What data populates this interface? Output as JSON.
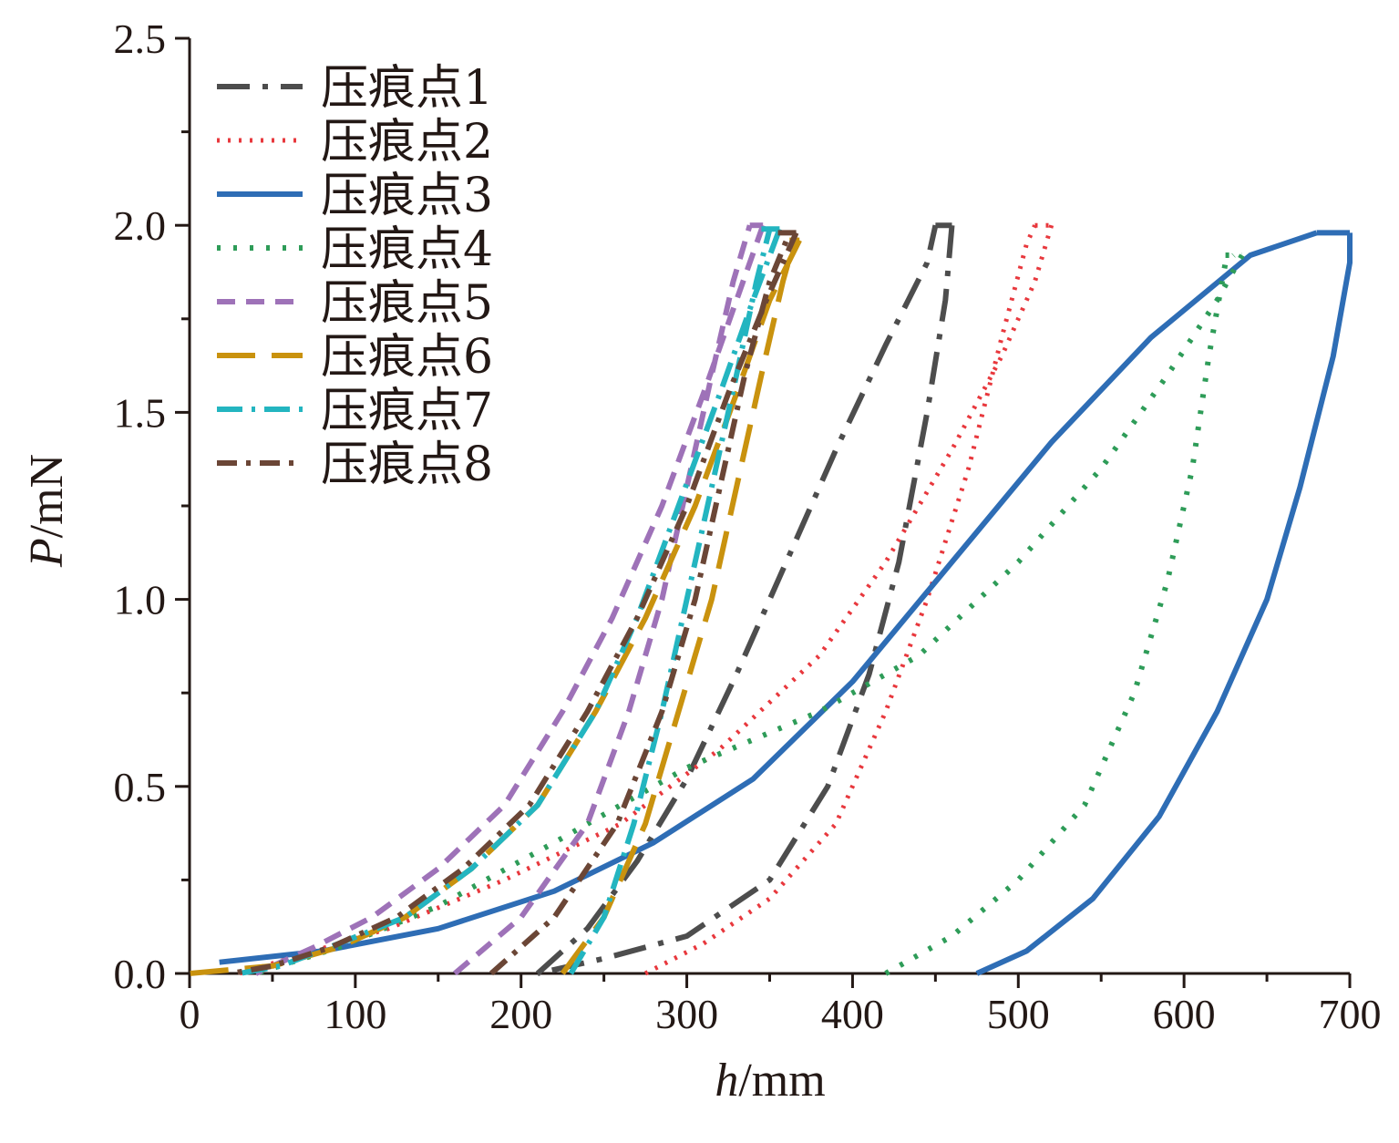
{
  "chart_data": {
    "type": "line",
    "xlabel": {
      "var": "h",
      "unit": "/mm"
    },
    "ylabel": {
      "var": "P",
      "unit": "/mN"
    },
    "xlim": [
      0,
      700
    ],
    "ylim": [
      0,
      2.5
    ],
    "xticks": [
      0,
      100,
      200,
      300,
      400,
      500,
      600,
      700
    ],
    "xtick_labels": [
      "0",
      "100",
      "200",
      "300",
      "400",
      "500",
      "600",
      "700"
    ],
    "yticks": [
      0,
      0.5,
      1.0,
      1.5,
      2.0,
      2.5
    ],
    "ytick_labels": [
      "0.0",
      "0.5",
      "1.0",
      "1.5",
      "2.0",
      "2.5"
    ],
    "grid": false,
    "legend_position": "top-left",
    "series": [
      {
        "name": "压痕点1",
        "color": "#4d4d4d",
        "dash": "36,14,6,14",
        "width": 6,
        "loading": [
          [
            210,
            0
          ],
          [
            240,
            0.12
          ],
          [
            270,
            0.3
          ],
          [
            300,
            0.52
          ],
          [
            330,
            0.8
          ],
          [
            360,
            1.1
          ],
          [
            390,
            1.4
          ],
          [
            420,
            1.68
          ],
          [
            445,
            1.9
          ],
          [
            450,
            2.0
          ]
        ],
        "hold": [
          [
            450,
            2.0
          ],
          [
            460,
            2.0
          ]
        ],
        "unloading": [
          [
            460,
            2.0
          ],
          [
            456,
            1.8
          ],
          [
            445,
            1.5
          ],
          [
            428,
            1.1
          ],
          [
            410,
            0.8
          ],
          [
            385,
            0.5
          ],
          [
            350,
            0.25
          ],
          [
            300,
            0.1
          ],
          [
            250,
            0.04
          ],
          [
            210,
            0
          ]
        ]
      },
      {
        "name": "压痕点2",
        "color": "#e8383d",
        "dash": "3,9",
        "width": 5,
        "loading": [
          [
            275,
            0
          ],
          [
            310,
            0.08
          ],
          [
            350,
            0.2
          ],
          [
            390,
            0.4
          ],
          [
            420,
            0.7
          ],
          [
            445,
            1.0
          ],
          [
            470,
            1.35
          ],
          [
            490,
            1.7
          ],
          [
            505,
            1.95
          ],
          [
            510,
            2.0
          ]
        ],
        "hold": [
          [
            510,
            2.0
          ],
          [
            520,
            2.0
          ]
        ],
        "unloading": [
          [
            520,
            2.0
          ],
          [
            510,
            1.85
          ],
          [
            490,
            1.65
          ],
          [
            460,
            1.4
          ],
          [
            420,
            1.1
          ],
          [
            380,
            0.85
          ],
          [
            320,
            0.6
          ],
          [
            260,
            0.4
          ],
          [
            190,
            0.25
          ],
          [
            120,
            0.12
          ],
          [
            60,
            0.04
          ],
          [
            30,
            0
          ]
        ]
      },
      {
        "name": "压痕点3",
        "color": "#2e6db5",
        "dash": "",
        "width": 6,
        "loading": [
          [
            18,
            0.03
          ],
          [
            80,
            0.06
          ],
          [
            150,
            0.12
          ],
          [
            220,
            0.22
          ],
          [
            280,
            0.35
          ],
          [
            340,
            0.52
          ],
          [
            400,
            0.78
          ],
          [
            460,
            1.1
          ],
          [
            520,
            1.42
          ],
          [
            580,
            1.7
          ],
          [
            640,
            1.92
          ],
          [
            680,
            1.98
          ]
        ],
        "hold": [
          [
            680,
            1.98
          ],
          [
            700,
            1.98
          ]
        ],
        "unloading": [
          [
            700,
            1.98
          ],
          [
            700,
            1.9
          ],
          [
            690,
            1.65
          ],
          [
            670,
            1.3
          ],
          [
            650,
            1.0
          ],
          [
            620,
            0.7
          ],
          [
            585,
            0.42
          ],
          [
            545,
            0.2
          ],
          [
            505,
            0.06
          ],
          [
            475,
            0
          ]
        ]
      },
      {
        "name": "压痕点4",
        "color": "#2e9c58",
        "dash": "4,14",
        "width": 6,
        "loading": [
          [
            420,
            0
          ],
          [
            460,
            0.1
          ],
          [
            500,
            0.25
          ],
          [
            540,
            0.45
          ],
          [
            570,
            0.75
          ],
          [
            590,
            1.05
          ],
          [
            605,
            1.35
          ],
          [
            615,
            1.65
          ],
          [
            625,
            1.9
          ],
          [
            630,
            1.92
          ]
        ],
        "hold": [
          [
            625,
            1.92
          ],
          [
            635,
            1.92
          ]
        ],
        "unloading": [
          [
            635,
            1.92
          ],
          [
            620,
            1.8
          ],
          [
            590,
            1.6
          ],
          [
            550,
            1.35
          ],
          [
            500,
            1.1
          ],
          [
            440,
            0.85
          ],
          [
            380,
            0.7
          ],
          [
            300,
            0.55
          ],
          [
            220,
            0.35
          ],
          [
            150,
            0.18
          ],
          [
            90,
            0.07
          ],
          [
            40,
            0
          ]
        ]
      },
      {
        "name": "压痕点5",
        "color": "#9e72b8",
        "dash": "20,12",
        "width": 6,
        "loading": [
          [
            160,
            0
          ],
          [
            200,
            0.15
          ],
          [
            240,
            0.4
          ],
          [
            265,
            0.7
          ],
          [
            285,
            1.0
          ],
          [
            300,
            1.3
          ],
          [
            315,
            1.6
          ],
          [
            328,
            1.85
          ],
          [
            338,
            2.0
          ]
        ],
        "hold": [
          [
            338,
            2.0
          ],
          [
            346,
            2.0
          ]
        ],
        "unloading": [
          [
            346,
            2.0
          ],
          [
            330,
            1.8
          ],
          [
            310,
            1.55
          ],
          [
            285,
            1.25
          ],
          [
            255,
            0.95
          ],
          [
            225,
            0.7
          ],
          [
            190,
            0.45
          ],
          [
            150,
            0.28
          ],
          [
            110,
            0.15
          ],
          [
            75,
            0.07
          ],
          [
            40,
            0
          ]
        ]
      },
      {
        "name": "压痕点6",
        "color": "#c9920e",
        "dash": "42,18",
        "width": 6,
        "loading": [
          [
            225,
            0
          ],
          [
            250,
            0.15
          ],
          [
            275,
            0.4
          ],
          [
            295,
            0.7
          ],
          [
            315,
            1.0
          ],
          [
            330,
            1.3
          ],
          [
            345,
            1.6
          ],
          [
            358,
            1.85
          ],
          [
            365,
            1.96
          ]
        ],
        "hold": [
          [
            362,
            1.96
          ],
          [
            368,
            1.96
          ]
        ],
        "unloading": [
          [
            368,
            1.96
          ],
          [
            350,
            1.8
          ],
          [
            330,
            1.55
          ],
          [
            305,
            1.25
          ],
          [
            275,
            0.95
          ],
          [
            245,
            0.7
          ],
          [
            210,
            0.45
          ],
          [
            170,
            0.28
          ],
          [
            130,
            0.15
          ],
          [
            90,
            0.07
          ],
          [
            50,
            0.02
          ],
          [
            0,
            0
          ]
        ]
      },
      {
        "name": "压痕点7",
        "color": "#23b5c0",
        "dash": "28,10,4,10",
        "width": 6,
        "loading": [
          [
            230,
            0
          ],
          [
            250,
            0.15
          ],
          [
            268,
            0.4
          ],
          [
            285,
            0.7
          ],
          [
            300,
            1.0
          ],
          [
            315,
            1.3
          ],
          [
            330,
            1.6
          ],
          [
            342,
            1.85
          ],
          [
            350,
            1.99
          ]
        ],
        "hold": [
          [
            345,
            1.99
          ],
          [
            356,
            1.99
          ]
        ],
        "unloading": [
          [
            356,
            1.99
          ],
          [
            340,
            1.8
          ],
          [
            320,
            1.55
          ],
          [
            295,
            1.25
          ],
          [
            270,
            0.95
          ],
          [
            245,
            0.7
          ],
          [
            210,
            0.45
          ],
          [
            170,
            0.28
          ],
          [
            130,
            0.15
          ],
          [
            90,
            0.08
          ],
          [
            55,
            0.02
          ],
          [
            30,
            0
          ]
        ]
      },
      {
        "name": "压痕点8",
        "color": "#6b4636",
        "dash": "22,10,5,10",
        "width": 6,
        "loading": [
          [
            182,
            0
          ],
          [
            220,
            0.15
          ],
          [
            258,
            0.4
          ],
          [
            285,
            0.7
          ],
          [
            305,
            1.0
          ],
          [
            320,
            1.3
          ],
          [
            335,
            1.6
          ],
          [
            350,
            1.85
          ],
          [
            362,
            1.98
          ]
        ],
        "hold": [
          [
            355,
            1.98
          ],
          [
            366,
            1.98
          ]
        ],
        "unloading": [
          [
            366,
            1.98
          ],
          [
            348,
            1.8
          ],
          [
            325,
            1.55
          ],
          [
            300,
            1.25
          ],
          [
            270,
            0.95
          ],
          [
            240,
            0.7
          ],
          [
            205,
            0.45
          ],
          [
            165,
            0.28
          ],
          [
            125,
            0.15
          ],
          [
            85,
            0.07
          ],
          [
            50,
            0.02
          ],
          [
            25,
            0
          ]
        ]
      }
    ]
  }
}
